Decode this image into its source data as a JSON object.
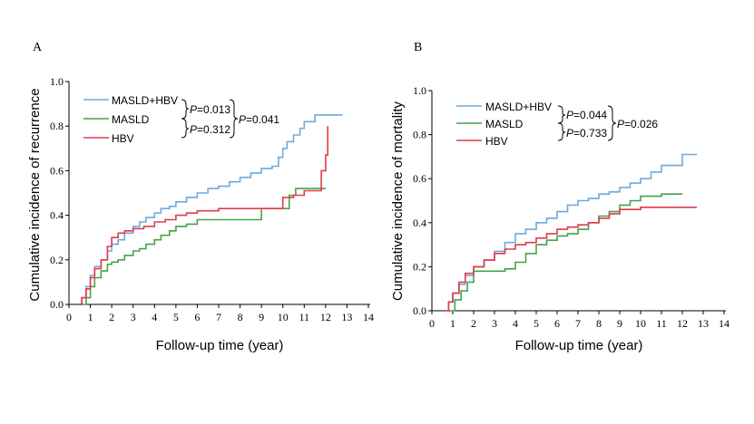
{
  "chart_data": [
    {
      "type": "line",
      "panel_label": "A",
      "xlabel": "Follow-up time (year)",
      "ylabel": "Cumulative incidence of recurrence",
      "xlim": [
        0,
        14
      ],
      "ylim": [
        0,
        1.0
      ],
      "x_ticks": [
        0,
        1,
        2,
        3,
        4,
        5,
        6,
        7,
        8,
        9,
        10,
        11,
        12,
        13,
        14
      ],
      "y_ticks": [
        0.0,
        0.2,
        0.4,
        0.6,
        0.8,
        1.0
      ],
      "x_tick_labels": [
        "0",
        "1",
        "2",
        "3",
        "4",
        "5",
        "6",
        "7",
        "8",
        "9",
        "10",
        "11",
        "12",
        "13",
        "14"
      ],
      "y_tick_labels": [
        "0.0",
        "0.2",
        "0.4",
        "0.6",
        "0.8",
        "1.0"
      ],
      "series": [
        {
          "name": "MASLD+HBV",
          "color": "#6fa8dc",
          "x": [
            0.5,
            0.6,
            0.8,
            1.0,
            1.2,
            1.5,
            1.8,
            2.0,
            2.3,
            2.6,
            3.0,
            3.3,
            3.6,
            4.0,
            4.3,
            4.7,
            5.0,
            5.5,
            6.0,
            6.5,
            7.0,
            7.5,
            8.0,
            8.5,
            9.0,
            9.5,
            9.8,
            10.0,
            10.2,
            10.5,
            10.8,
            11.0,
            11.5,
            12.0,
            12.8
          ],
          "y": [
            0.0,
            0.03,
            0.08,
            0.13,
            0.17,
            0.2,
            0.24,
            0.27,
            0.29,
            0.32,
            0.35,
            0.37,
            0.39,
            0.41,
            0.43,
            0.44,
            0.46,
            0.48,
            0.5,
            0.52,
            0.53,
            0.55,
            0.57,
            0.59,
            0.61,
            0.62,
            0.66,
            0.7,
            0.73,
            0.76,
            0.79,
            0.82,
            0.85,
            0.85,
            0.85
          ]
        },
        {
          "name": "MASLD",
          "color": "#44a24a",
          "x": [
            0.5,
            0.8,
            1.0,
            1.2,
            1.5,
            1.8,
            2.0,
            2.3,
            2.6,
            3.0,
            3.3,
            3.6,
            4.0,
            4.3,
            4.7,
            5.0,
            5.5,
            6.0,
            7.0,
            8.0,
            9.0,
            10.0,
            10.3,
            10.6,
            11.0,
            12.0
          ],
          "y": [
            0.0,
            0.03,
            0.08,
            0.12,
            0.15,
            0.18,
            0.19,
            0.2,
            0.22,
            0.24,
            0.25,
            0.27,
            0.29,
            0.31,
            0.33,
            0.35,
            0.36,
            0.38,
            0.38,
            0.38,
            0.43,
            0.43,
            0.49,
            0.52,
            0.52,
            0.52
          ]
        },
        {
          "name": "HBV",
          "color": "#e03a4e",
          "x": [
            0.5,
            0.6,
            0.8,
            1.0,
            1.2,
            1.5,
            1.8,
            2.0,
            2.3,
            2.6,
            3.0,
            3.5,
            4.0,
            4.5,
            5.0,
            5.5,
            6.0,
            7.0,
            8.0,
            9.0,
            10.0,
            10.5,
            11.0,
            11.5,
            11.8,
            12.0,
            12.1
          ],
          "y": [
            0.0,
            0.03,
            0.07,
            0.12,
            0.16,
            0.2,
            0.26,
            0.3,
            0.32,
            0.33,
            0.34,
            0.35,
            0.37,
            0.38,
            0.4,
            0.41,
            0.42,
            0.43,
            0.43,
            0.43,
            0.48,
            0.49,
            0.51,
            0.51,
            0.6,
            0.67,
            0.8
          ]
        }
      ],
      "legend": {
        "placement": "top-left"
      },
      "annotations": {
        "pair_top": "=0.013",
        "pair_bottom": "=0.312",
        "overall": "=0.041",
        "p_letter": "P"
      }
    },
    {
      "type": "line",
      "panel_label": "B",
      "xlabel": "Follow-up time (year)",
      "ylabel": "Cumulative incidence of  mortality",
      "xlim": [
        0,
        14
      ],
      "ylim": [
        0,
        1.0
      ],
      "x_ticks": [
        0,
        1,
        2,
        3,
        4,
        5,
        6,
        7,
        8,
        9,
        10,
        11,
        12,
        13,
        14
      ],
      "y_ticks": [
        0.0,
        0.2,
        0.4,
        0.6,
        0.8,
        1.0
      ],
      "x_tick_labels": [
        "0",
        "1",
        "2",
        "3",
        "4",
        "5",
        "6",
        "7",
        "8",
        "9",
        "10",
        "11",
        "12",
        "13",
        "14"
      ],
      "y_tick_labels": [
        "0.0",
        "0.2",
        "0.4",
        "0.6",
        "0.8",
        "1.0"
      ],
      "series": [
        {
          "name": "MASLD+HBV",
          "color": "#6fa8dc",
          "x": [
            0.6,
            0.8,
            1.0,
            1.3,
            1.6,
            2.0,
            2.5,
            3.0,
            3.5,
            4.0,
            4.5,
            5.0,
            5.5,
            6.0,
            6.5,
            7.0,
            7.5,
            8.0,
            8.5,
            9.0,
            9.5,
            10.0,
            10.5,
            11.0,
            12.0,
            12.7
          ],
          "y": [
            0.0,
            0.04,
            0.08,
            0.12,
            0.16,
            0.2,
            0.23,
            0.27,
            0.31,
            0.35,
            0.37,
            0.4,
            0.42,
            0.45,
            0.48,
            0.5,
            0.51,
            0.53,
            0.54,
            0.56,
            0.58,
            0.6,
            0.63,
            0.66,
            0.71,
            0.71
          ]
        },
        {
          "name": "MASLD",
          "color": "#44a24a",
          "x": [
            0.8,
            1.1,
            1.4,
            1.7,
            2.0,
            3.0,
            3.5,
            4.0,
            4.5,
            5.0,
            5.5,
            6.0,
            6.5,
            7.0,
            7.5,
            8.0,
            8.5,
            9.0,
            9.5,
            10.0,
            11.0,
            12.0
          ],
          "y": [
            0.0,
            0.05,
            0.09,
            0.13,
            0.18,
            0.18,
            0.19,
            0.22,
            0.26,
            0.3,
            0.32,
            0.34,
            0.35,
            0.37,
            0.4,
            0.43,
            0.45,
            0.48,
            0.5,
            0.52,
            0.53,
            0.53
          ]
        },
        {
          "name": "HBV",
          "color": "#e03a4e",
          "x": [
            0.6,
            0.8,
            1.0,
            1.3,
            1.6,
            2.0,
            2.5,
            3.0,
            3.5,
            4.0,
            4.5,
            5.0,
            5.5,
            6.0,
            6.5,
            7.0,
            7.5,
            8.0,
            8.5,
            9.0,
            10.0,
            11.0,
            12.0,
            12.7
          ],
          "y": [
            0.0,
            0.04,
            0.08,
            0.13,
            0.17,
            0.2,
            0.23,
            0.26,
            0.28,
            0.3,
            0.31,
            0.33,
            0.35,
            0.37,
            0.38,
            0.39,
            0.4,
            0.42,
            0.44,
            0.46,
            0.47,
            0.47,
            0.47,
            0.47
          ]
        }
      ],
      "legend": {
        "placement": "top-left"
      },
      "annotations": {
        "pair_top": "=0.044",
        "pair_bottom": "=0.733",
        "overall": "=0.026",
        "p_letter": "P"
      }
    }
  ]
}
